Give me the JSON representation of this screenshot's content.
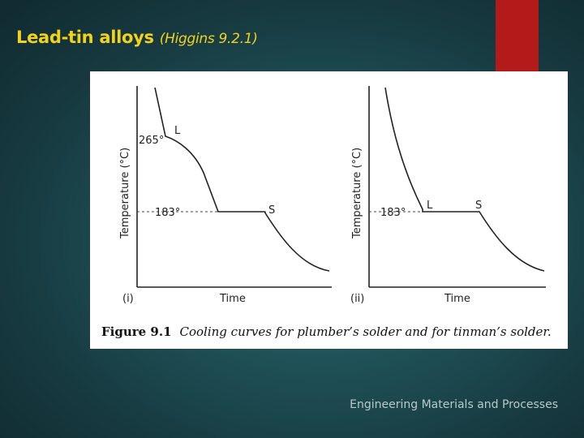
{
  "slide": {
    "title": "Lead-tin alloys",
    "subtitle": "(Higgins 9.2.1)",
    "footer": "Engineering Materials and Processes",
    "colors": {
      "title": "#f3d21c",
      "accent_tab": "#b31b1b"
    }
  },
  "figure": {
    "caption_number": "Figure 9.1",
    "caption_text": "Cooling curves for plumber’s solder and for tinman’s solder.",
    "panels": [
      {
        "id": "i",
        "label": "(i)",
        "xlabel": "Time",
        "ylabel": "Temperature (°C)",
        "temp_labels": [
          "265°",
          "183°"
        ],
        "point_labels": [
          "L",
          "S"
        ]
      },
      {
        "id": "ii",
        "label": "(ii)",
        "xlabel": "Time",
        "ylabel": "Temperature (°C)",
        "temp_labels": [
          "183°"
        ],
        "point_labels": [
          "L",
          "S"
        ]
      }
    ]
  }
}
